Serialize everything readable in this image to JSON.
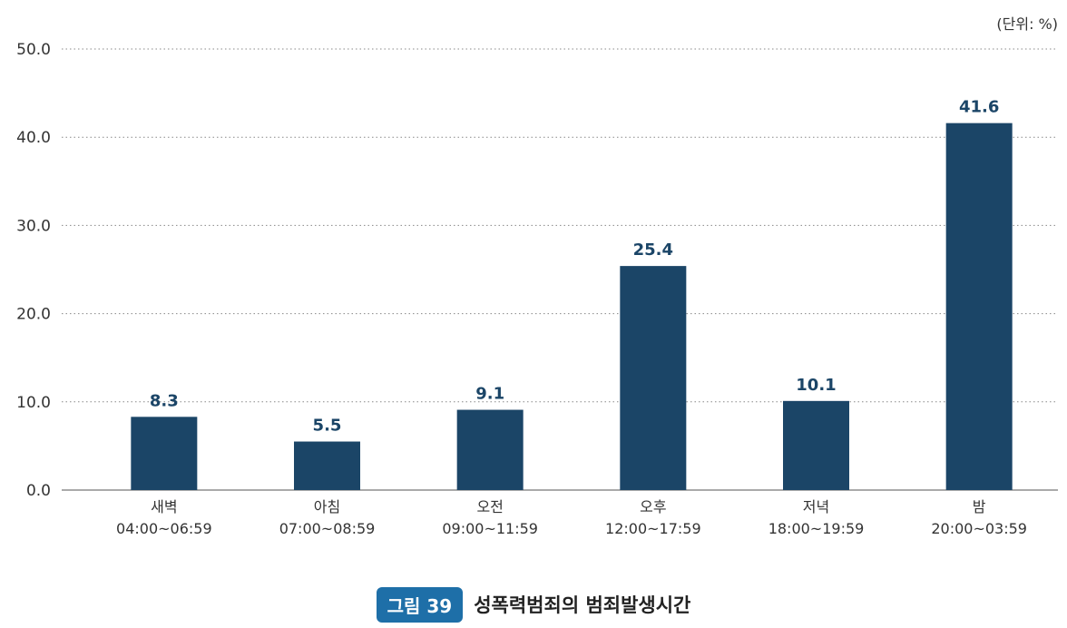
{
  "chart_data": {
    "type": "bar",
    "unit_label": "(단위: %)",
    "categories": [
      {
        "name": "새벽",
        "range": "04:00~06:59"
      },
      {
        "name": "아침",
        "range": "07:00~08:59"
      },
      {
        "name": "오전",
        "range": "09:00~11:59"
      },
      {
        "name": "오후",
        "range": "12:00~17:59"
      },
      {
        "name": "저녁",
        "range": "18:00~19:59"
      },
      {
        "name": "밤",
        "range": "20:00~03:59"
      }
    ],
    "values": [
      8.3,
      5.5,
      9.1,
      25.4,
      10.1,
      41.6
    ],
    "value_labels": [
      "8.3",
      "5.5",
      "9.1",
      "25.4",
      "10.1",
      "41.6"
    ],
    "ylim": [
      0,
      50
    ],
    "yticks": [
      "0.0",
      "10.0",
      "20.0",
      "30.0",
      "40.0",
      "50.0"
    ],
    "ytick_values": [
      0,
      10,
      20,
      30,
      40,
      50
    ],
    "grid": true,
    "bar_color": "#1b4567"
  },
  "caption": {
    "badge": "그림 39",
    "title": "성폭력범죄의 범죄발생시간"
  }
}
